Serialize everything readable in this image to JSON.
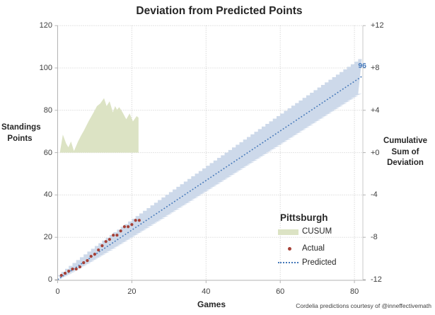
{
  "title": "Deviation from Predicted Points",
  "caption": "Cordelia predictions courtesy of @inneffectivemath",
  "end_label": "96",
  "x_axis": {
    "title": "Games",
    "ticks": [
      "0",
      "20",
      "40",
      "60",
      "80"
    ]
  },
  "left_axis": {
    "title_lines": [
      "Standings",
      "Points"
    ],
    "ticks": [
      "0",
      "20",
      "40",
      "60",
      "80",
      "100",
      "120"
    ]
  },
  "right_axis": {
    "title_lines": [
      "Cumulative",
      "Sum of",
      "Deviation"
    ],
    "ticks": [
      "+12",
      "+8",
      "+4",
      "+0",
      "-4",
      "-8",
      "-12"
    ]
  },
  "legend": {
    "title": "Pittsburgh",
    "items": [
      {
        "label": "CUSUM",
        "swatch": "area"
      },
      {
        "label": "Actual",
        "swatch": "dot"
      },
      {
        "label": "Predicted",
        "swatch": "dotted-line"
      }
    ]
  },
  "colors": {
    "band": "#cdd9ea",
    "cusum_fill": "#dce3c4",
    "actual": "#a64137",
    "predicted": "#4377b9",
    "grid": "#c9c9c9",
    "axis_line": "#b3b3b3",
    "end_label": "#4377b9"
  },
  "chart_data": {
    "type": "combo",
    "title": "Deviation from Predicted Points",
    "xlabel": "Games",
    "ylabel_left": "Standings Points",
    "ylabel_right": "Cumulative Sum of Deviation",
    "x_range": [
      0,
      82.3
    ],
    "y_left_range": [
      0,
      120
    ],
    "y_right_range": [
      -12,
      12
    ],
    "grid": true,
    "legend_position": "inside-right",
    "series": [
      {
        "name": "CUSUM",
        "type": "area",
        "axis": "right",
        "baseline": 0,
        "points": [
          [
            0.6,
            0
          ],
          [
            1.4,
            1.7
          ],
          [
            2.3,
            0.85
          ],
          [
            2.9,
            0.5
          ],
          [
            3.6,
            1.05
          ],
          [
            4.4,
            0.15
          ],
          [
            5.5,
            1.05
          ],
          [
            6.3,
            1.6
          ],
          [
            7.1,
            2.1
          ],
          [
            8.4,
            3.0
          ],
          [
            9.7,
            3.8
          ],
          [
            10.6,
            4.4
          ],
          [
            11.5,
            4.65
          ],
          [
            12.5,
            5.15
          ],
          [
            13.2,
            4.4
          ],
          [
            14.0,
            4.85
          ],
          [
            14.9,
            3.8
          ],
          [
            15.5,
            4.4
          ],
          [
            16.0,
            4.05
          ],
          [
            16.6,
            4.3
          ],
          [
            17.5,
            3.8
          ],
          [
            18.5,
            3.15
          ],
          [
            19.4,
            3.7
          ],
          [
            20.3,
            2.95
          ],
          [
            21.3,
            3.45
          ],
          [
            21.8,
            3.3
          ]
        ]
      },
      {
        "name": "Actual",
        "type": "scatter",
        "axis": "left",
        "x": [
          1,
          2,
          3,
          4,
          5,
          6,
          7,
          8,
          9,
          10,
          11,
          12,
          13,
          14,
          15,
          16,
          17,
          18,
          19,
          20,
          21,
          22
        ],
        "y": [
          2,
          3,
          4,
          5,
          5,
          6,
          8,
          9,
          11,
          12,
          14,
          16,
          18,
          19,
          21,
          21,
          23,
          25,
          25,
          26,
          28,
          28
        ]
      },
      {
        "name": "Predicted",
        "type": "line",
        "style": "dotted",
        "axis": "left",
        "x": [
          0,
          82
        ],
        "y": [
          0,
          96
        ],
        "end_label": "96"
      },
      {
        "name": "Prediction band",
        "type": "band",
        "axis": "left",
        "from_game": 1,
        "to_game": 82,
        "center_end": 96,
        "half_width_end": 8.2,
        "growth": "sqrt",
        "step_games": 1
      }
    ]
  }
}
